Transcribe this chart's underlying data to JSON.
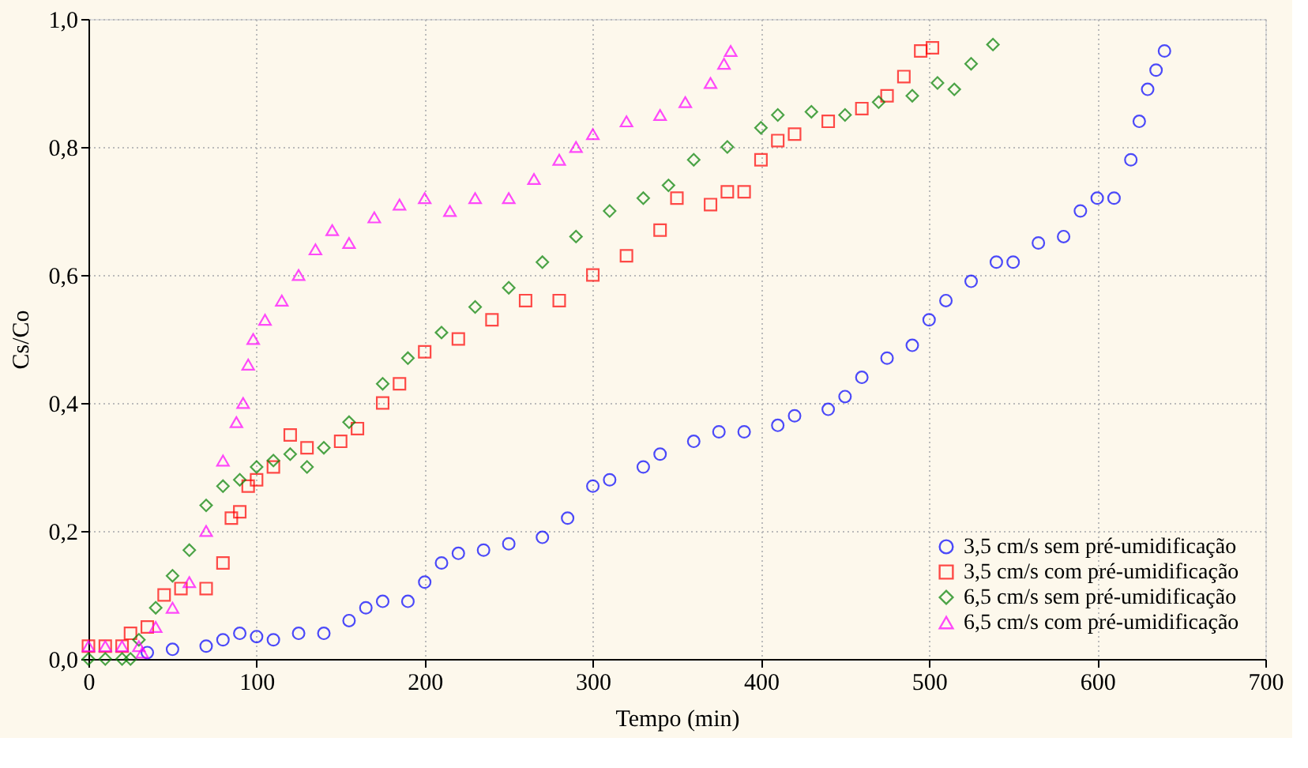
{
  "chart_data": {
    "type": "scatter",
    "xlabel": "Tempo (min)",
    "ylabel": "Cs/Co",
    "xlim": [
      0,
      700
    ],
    "ylim": [
      0,
      1
    ],
    "xticks": [
      0,
      100,
      200,
      300,
      400,
      500,
      600,
      700
    ],
    "yticks": [
      {
        "value": 0,
        "label": "0,0"
      },
      {
        "value": 0.2,
        "label": "0,2"
      },
      {
        "value": 0.4,
        "label": "0,4"
      },
      {
        "value": 0.6,
        "label": "0,6"
      },
      {
        "value": 0.8,
        "label": "0,8"
      },
      {
        "value": 1,
        "label": "1,0"
      }
    ],
    "grid": true,
    "legend": "bottom right",
    "series": [
      {
        "name": "3,5 cm/s sem pré-umidificação",
        "color": "#0000ff",
        "marker": "circle",
        "x": [
          35,
          50,
          70,
          80,
          90,
          100,
          110,
          125,
          140,
          155,
          165,
          175,
          190,
          200,
          210,
          220,
          235,
          250,
          270,
          285,
          300,
          310,
          330,
          340,
          360,
          375,
          390,
          410,
          420,
          440,
          450,
          460,
          475,
          490,
          500,
          510,
          525,
          540,
          550,
          565,
          580,
          590,
          600,
          610,
          620,
          625,
          630,
          635,
          640
        ],
        "values": [
          0.01,
          0.015,
          0.02,
          0.03,
          0.04,
          0.035,
          0.03,
          0.04,
          0.04,
          0.06,
          0.08,
          0.09,
          0.09,
          0.12,
          0.15,
          0.165,
          0.17,
          0.18,
          0.19,
          0.22,
          0.27,
          0.28,
          0.3,
          0.32,
          0.34,
          0.355,
          0.355,
          0.365,
          0.38,
          0.39,
          0.41,
          0.44,
          0.47,
          0.49,
          0.53,
          0.56,
          0.59,
          0.62,
          0.62,
          0.65,
          0.66,
          0.7,
          0.72,
          0.72,
          0.78,
          0.84,
          0.89,
          0.92,
          0.95
        ]
      },
      {
        "name": "3,5 cm/s com pré-umidificação",
        "color": "#ff0000",
        "marker": "square",
        "x": [
          0,
          10,
          20,
          25,
          35,
          45,
          55,
          70,
          80,
          85,
          90,
          95,
          100,
          110,
          120,
          130,
          150,
          160,
          175,
          185,
          200,
          220,
          240,
          260,
          280,
          300,
          320,
          340,
          350,
          370,
          380,
          390,
          400,
          410,
          420,
          440,
          460,
          475,
          485,
          495,
          502
        ],
        "values": [
          0.02,
          0.02,
          0.02,
          0.04,
          0.05,
          0.1,
          0.11,
          0.11,
          0.15,
          0.22,
          0.23,
          0.27,
          0.28,
          0.3,
          0.35,
          0.33,
          0.34,
          0.36,
          0.4,
          0.43,
          0.48,
          0.5,
          0.53,
          0.56,
          0.56,
          0.6,
          0.63,
          0.67,
          0.72,
          0.71,
          0.73,
          0.73,
          0.78,
          0.81,
          0.82,
          0.84,
          0.86,
          0.88,
          0.91,
          0.95,
          0.955
        ]
      },
      {
        "name": "6,5 cm/s sem pré-umidificação",
        "color": "#008000",
        "marker": "diamond",
        "x": [
          0,
          10,
          20,
          25,
          30,
          40,
          50,
          60,
          70,
          80,
          90,
          100,
          110,
          120,
          130,
          140,
          155,
          175,
          190,
          210,
          230,
          250,
          270,
          290,
          310,
          330,
          345,
          360,
          380,
          400,
          410,
          430,
          450,
          470,
          490,
          505,
          515,
          525,
          538
        ],
        "values": [
          0,
          0,
          0,
          0,
          0.03,
          0.08,
          0.13,
          0.17,
          0.24,
          0.27,
          0.28,
          0.3,
          0.31,
          0.32,
          0.3,
          0.33,
          0.37,
          0.43,
          0.47,
          0.51,
          0.55,
          0.58,
          0.62,
          0.66,
          0.7,
          0.72,
          0.74,
          0.78,
          0.8,
          0.83,
          0.85,
          0.855,
          0.85,
          0.87,
          0.88,
          0.9,
          0.89,
          0.93,
          0.96
        ]
      },
      {
        "name": "6,5 cm/s com pré-umidificação",
        "color": "#ff00ff",
        "marker": "triangle",
        "x": [
          0,
          10,
          20,
          30,
          32,
          40,
          50,
          60,
          70,
          80,
          88,
          92,
          95,
          98,
          105,
          115,
          125,
          135,
          145,
          155,
          170,
          185,
          200,
          215,
          230,
          250,
          265,
          280,
          290,
          300,
          320,
          340,
          355,
          370,
          378,
          382
        ],
        "values": [
          0.02,
          0.02,
          0.02,
          0.02,
          0.01,
          0.05,
          0.08,
          0.12,
          0.2,
          0.31,
          0.37,
          0.4,
          0.46,
          0.5,
          0.53,
          0.56,
          0.6,
          0.64,
          0.67,
          0.65,
          0.69,
          0.71,
          0.72,
          0.7,
          0.72,
          0.72,
          0.75,
          0.78,
          0.8,
          0.82,
          0.84,
          0.85,
          0.87,
          0.9,
          0.93,
          0.95
        ]
      }
    ]
  }
}
